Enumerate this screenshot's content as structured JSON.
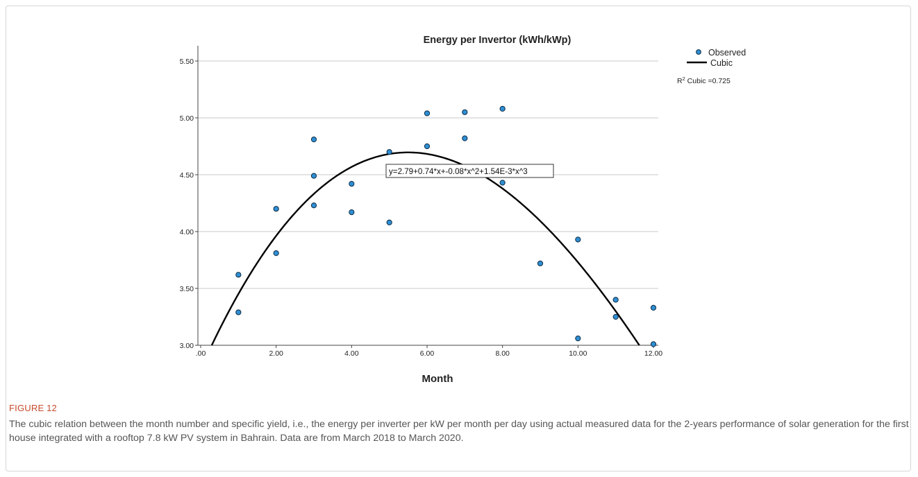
{
  "chart_data": {
    "type": "scatter",
    "title": "Energy per Invertor (kWh/kWp)",
    "xlabel": "Month",
    "ylabel": "",
    "xlim": [
      0,
      12.2
    ],
    "ylim": [
      3.0,
      5.65
    ],
    "x_ticks": [
      0,
      2,
      4,
      6,
      8,
      10,
      12
    ],
    "x_tick_labels": [
      ".00",
      "2.00",
      "4.00",
      "6.00",
      "8.00",
      "10.00",
      "12.00"
    ],
    "y_ticks": [
      3.0,
      3.5,
      4.0,
      4.5,
      5.0,
      5.5
    ],
    "y_tick_labels": [
      "3.00",
      "3.50",
      "4.00",
      "4.50",
      "5.00",
      "5.50"
    ],
    "grid": "horizontal",
    "legend": {
      "placement": "top-right",
      "observed_label": "Observed",
      "fit_label": "Cubic",
      "r2_prefix": "R",
      "r2_sup": "2",
      "r2_text": " Cubic =0.725"
    },
    "series": [
      {
        "name": "Observed",
        "x": [
          1,
          1,
          2,
          2,
          3,
          3,
          3,
          4,
          4,
          5,
          5,
          6,
          6,
          7,
          7,
          8,
          8,
          9,
          10,
          10,
          11,
          11,
          12,
          12
        ],
        "y": [
          3.62,
          3.29,
          4.2,
          3.81,
          4.81,
          4.49,
          4.23,
          4.42,
          4.17,
          4.7,
          4.08,
          5.04,
          4.75,
          5.05,
          4.82,
          5.08,
          4.43,
          3.72,
          3.93,
          3.06,
          3.4,
          3.25,
          3.33,
          3.01
        ]
      },
      {
        "name": "Cubic",
        "fit": "cubic",
        "coefficients": [
          2.79,
          0.74,
          -0.08,
          0.00154
        ]
      }
    ],
    "annotation": "y=2.79+0.74*x+-0.08*x^2+1.54E-3*x^3",
    "colors": {
      "marker_fill": "#2f8fd3",
      "marker_stroke": "#0d2a44",
      "fit_line": "#000000",
      "grid": "#c8c8c8",
      "axis": "#444444"
    }
  },
  "figure": {
    "label": "FIGURE 12",
    "caption": "The cubic relation between the month number and specific yield, i.e., the energy per inverter per kW per month per day using actual measured data for the 2-years performance of solar generation for the first house integrated with a rooftop 7.8 kW PV system in Bahrain. Data are from March 2018 to March 2020."
  }
}
